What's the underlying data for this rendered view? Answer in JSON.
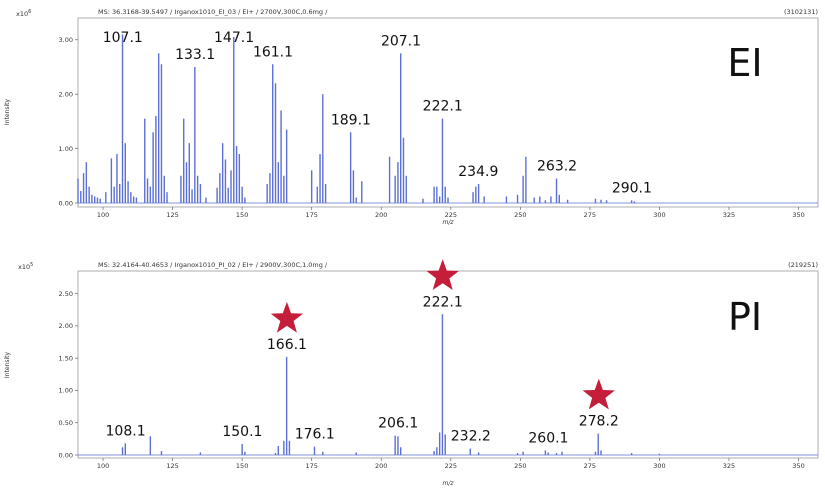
{
  "chart_data": [
    {
      "type": "bar",
      "header": "MS: 36.3168-39.5497 / Irganox1010_EI_03 / EI+ / 2700V,300C,0.6mg /",
      "count": "(3102131)",
      "exponent_label": "x10",
      "exponent_power": "6",
      "ylabel": "Intensity",
      "xlabel": "m/z",
      "big_label": "EI",
      "xlim": [
        91,
        357
      ],
      "ylim": [
        0,
        3.4
      ],
      "x_ticks": [
        "100",
        "125",
        "150",
        "175",
        "200",
        "225",
        "250",
        "275",
        "300",
        "325",
        "350"
      ],
      "y_ticks": [
        "0.00",
        "1.00",
        "2.00",
        "3.00"
      ],
      "peak_labels": [
        "107.1",
        "133.1",
        "147.1",
        "161.1",
        "189.1",
        "207.1",
        "222.1",
        "234.9",
        "263.2",
        "290.1"
      ],
      "x": [
        91,
        92,
        93,
        94,
        95,
        96,
        97,
        98,
        99,
        101,
        103,
        104,
        105,
        106,
        107,
        108,
        109,
        110,
        111,
        112,
        115,
        116,
        117,
        118,
        119,
        120,
        121,
        122,
        123,
        128,
        129,
        130,
        131,
        132,
        133,
        134,
        135,
        137,
        141,
        142,
        143,
        144,
        145,
        146,
        147,
        148,
        149,
        150,
        151,
        159,
        160,
        161,
        162,
        163,
        164,
        165,
        166,
        175,
        177,
        178,
        179,
        180,
        189,
        190,
        191,
        193,
        203,
        205,
        206,
        207,
        208,
        209,
        215,
        219,
        220,
        221,
        222,
        223,
        224,
        233,
        234,
        235,
        237,
        245,
        249,
        251,
        252,
        255,
        257,
        259,
        261,
        263,
        264,
        267,
        277,
        279,
        281,
        290,
        291
      ],
      "values": [
        0.45,
        0.22,
        0.55,
        0.75,
        0.3,
        0.15,
        0.12,
        0.1,
        0.08,
        0.2,
        0.82,
        0.3,
        0.9,
        0.35,
        3.1,
        1.1,
        0.4,
        0.2,
        0.12,
        0.1,
        1.55,
        0.45,
        0.3,
        1.3,
        1.6,
        2.75,
        2.55,
        0.5,
        0.2,
        0.5,
        1.55,
        0.75,
        1.1,
        0.25,
        2.5,
        0.5,
        0.35,
        0.1,
        0.28,
        0.55,
        1.1,
        0.8,
        0.28,
        0.6,
        3.05,
        1.05,
        0.9,
        0.3,
        0.1,
        0.35,
        0.55,
        2.55,
        2.2,
        0.75,
        1.7,
        0.5,
        1.35,
        0.6,
        0.3,
        0.9,
        2.0,
        0.35,
        1.3,
        0.6,
        0.1,
        0.4,
        0.85,
        0.5,
        0.75,
        2.75,
        1.2,
        0.5,
        0.08,
        0.3,
        0.3,
        0.12,
        1.55,
        0.3,
        0.1,
        0.2,
        0.3,
        0.35,
        0.12,
        0.12,
        0.15,
        0.5,
        0.85,
        0.1,
        0.12,
        0.05,
        0.12,
        0.45,
        0.15,
        0.06,
        0.08,
        0.06,
        0.05,
        0.05,
        0.03
      ],
      "color": "#5b6fd4"
    },
    {
      "type": "bar",
      "header": "MS: 32.4164-40.4653 / Irganox1010_PI_02 / EI+ / 2900V,300C,1.0mg /",
      "count": "(219251)",
      "exponent_label": "x10",
      "exponent_power": "5",
      "ylabel": "Intensity",
      "xlabel": "m/z",
      "big_label": "PI",
      "xlim": [
        91,
        357
      ],
      "ylim": [
        0,
        2.85
      ],
      "x_ticks": [
        "100",
        "125",
        "150",
        "175",
        "200",
        "225",
        "250",
        "275",
        "300",
        "325",
        "350"
      ],
      "y_ticks": [
        "0.00",
        "0.50",
        "1.00",
        "1.50",
        "2.00",
        "2.50"
      ],
      "peak_labels": [
        "108.1",
        "150.1",
        "166.1",
        "176.1",
        "206.1",
        "222.1",
        "232.2",
        "260.1",
        "278.2"
      ],
      "starred_peaks": [
        "166.1",
        "222.1",
        "278.2"
      ],
      "star_color": "#c41e3a",
      "x": [
        107,
        108,
        117,
        121,
        135,
        150,
        151,
        162,
        163,
        165,
        166,
        167,
        176,
        179,
        191,
        205,
        206,
        207,
        219,
        220,
        221,
        222,
        223,
        232,
        235,
        249,
        251,
        259,
        260,
        263,
        265,
        277,
        278,
        279,
        290,
        300
      ],
      "values": [
        0.12,
        0.18,
        0.29,
        0.06,
        0.04,
        0.17,
        0.05,
        0.03,
        0.14,
        0.22,
        1.52,
        0.22,
        0.13,
        0.05,
        0.04,
        0.3,
        0.29,
        0.12,
        0.06,
        0.12,
        0.35,
        2.18,
        0.32,
        0.1,
        0.04,
        0.03,
        0.05,
        0.07,
        0.04,
        0.03,
        0.05,
        0.05,
        0.33,
        0.07,
        0.03,
        0.02
      ],
      "color": "#5b6fd4"
    }
  ]
}
